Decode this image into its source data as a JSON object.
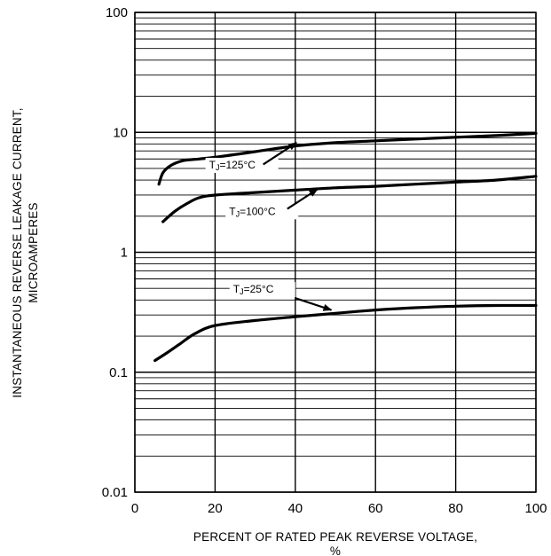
{
  "chart_data": {
    "type": "line",
    "title": "",
    "xlabel": "PERCENT OF RATED PEAK REVERSE VOLTAGE,",
    "xlabel_unit": "%",
    "ylabel_lines": [
      "INSTANTANEOUS REVERSE LEAKAGE CURRENT,",
      "MICROAMPERES"
    ],
    "xlim": [
      0,
      100
    ],
    "ylim": [
      0.01,
      100
    ],
    "yscale": "log",
    "grid": true,
    "x_ticks": [
      "0",
      "20",
      "40",
      "60",
      "80",
      "100"
    ],
    "y_ticks": [
      "0.01",
      "0.1",
      "1",
      "10",
      "100"
    ],
    "series": [
      {
        "name": "TJ=125°C",
        "label_main": "T",
        "label_sub": "J",
        "label_rest": "=125°C",
        "x": [
          6,
          7,
          9,
          12,
          16,
          20,
          30,
          40,
          50,
          60,
          70,
          80,
          90,
          100
        ],
        "y": [
          3.7,
          4.6,
          5.3,
          5.8,
          6.0,
          6.2,
          6.9,
          7.7,
          8.2,
          8.5,
          8.8,
          9.1,
          9.4,
          9.8
        ]
      },
      {
        "name": "TJ=100°C",
        "label_main": "T",
        "label_sub": "J",
        "label_rest": "=100°C",
        "x": [
          7,
          10,
          13,
          16,
          20,
          30,
          40,
          50,
          60,
          70,
          80,
          90,
          100
        ],
        "y": [
          1.8,
          2.2,
          2.55,
          2.85,
          3.0,
          3.15,
          3.3,
          3.45,
          3.55,
          3.7,
          3.85,
          4.0,
          4.3
        ]
      },
      {
        "name": "TJ=25°C",
        "label_main": "T",
        "label_sub": "J",
        "label_rest": "=25°C",
        "x": [
          5,
          8,
          11,
          15,
          20,
          30,
          40,
          50,
          60,
          70,
          80,
          90,
          100
        ],
        "y": [
          0.125,
          0.145,
          0.17,
          0.21,
          0.245,
          0.27,
          0.29,
          0.31,
          0.33,
          0.345,
          0.355,
          0.36,
          0.36
        ]
      }
    ]
  }
}
